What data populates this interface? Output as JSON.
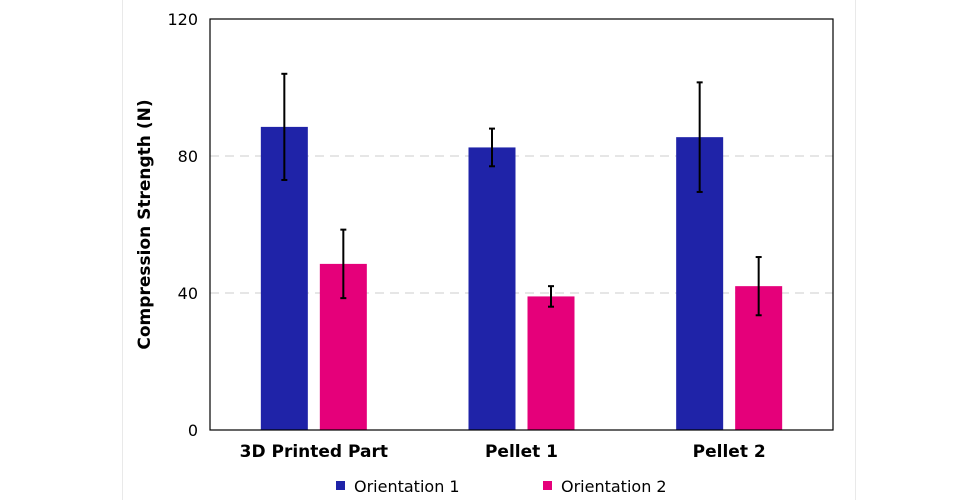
{
  "chart_data": {
    "type": "bar",
    "title": "",
    "xlabel": "",
    "ylabel": "Compression Strength (N)",
    "ylim": [
      0,
      120
    ],
    "yticks": [
      0,
      40,
      80,
      120
    ],
    "grid": "horizontal-dashed",
    "legend_position": "bottom",
    "categories": [
      "3D Printed Part",
      "Pellet 1",
      "Pellet 2"
    ],
    "series": [
      {
        "name": "Orientation 1",
        "color": "#1f23a8",
        "values": [
          88.5,
          82.5,
          85.5
        ],
        "errors": [
          15.5,
          5.5,
          16.0
        ]
      },
      {
        "name": "Orientation 2",
        "color": "#e5007a",
        "values": [
          48.5,
          39.0,
          42.0
        ],
        "errors": [
          10.0,
          3.0,
          8.5
        ]
      }
    ]
  }
}
